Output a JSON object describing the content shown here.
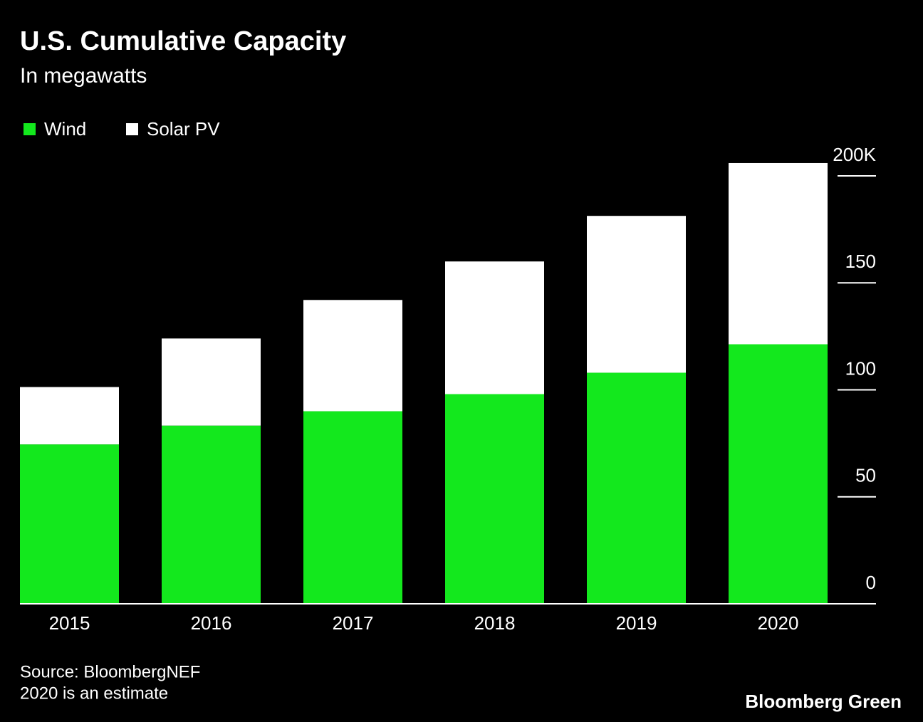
{
  "chart_data": {
    "type": "stacked-bar",
    "title": "U.S. Cumulative Capacity",
    "subtitle": "In megawatts",
    "categories": [
      "2015",
      "2016",
      "2017",
      "2018",
      "2019",
      "2020"
    ],
    "series": [
      {
        "name": "Wind",
        "color": "#13e81d",
        "values": [
          74.5,
          83.3,
          90,
          98,
          108,
          121.3
        ]
      },
      {
        "name": "Solar PV",
        "color": "#ffffff",
        "values": [
          26.8,
          40.7,
          52,
          62,
          73.3,
          84.7
        ]
      }
    ],
    "ylim": [
      0,
      200
    ],
    "yticks": [
      0,
      50,
      100,
      150,
      {
        "value": 200,
        "label": "200K"
      }
    ],
    "source": "Source: BloombergNEF",
    "note": "2020 is an estimate",
    "brand": "Bloomberg Green"
  }
}
